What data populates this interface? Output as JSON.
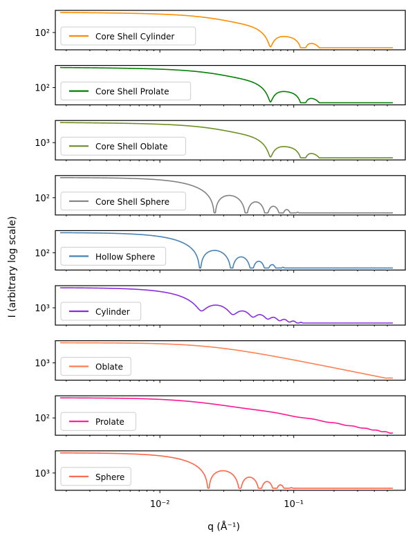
{
  "chart_data": {
    "type": "line",
    "ylabel": "I (arbitrary log scale)",
    "xlabel": "q (Å⁻¹)",
    "x_scale": "log",
    "xlim": [
      0.0018,
      0.55
    ],
    "x_tick_labels": [
      {
        "value": 0.01,
        "label": "10⁻²"
      },
      {
        "value": 0.1,
        "label": "10⁻¹"
      }
    ],
    "legend_placement": "lower left",
    "panels": [
      {
        "name": "Core Shell Cylinder",
        "color": "#ff8c00",
        "y_tick_label": "10²",
        "model": "coreshell",
        "radius": 120
      },
      {
        "name": "Core Shell Prolate",
        "color": "#008000",
        "y_tick_label": "10²",
        "model": "coreshell",
        "radius": 120
      },
      {
        "name": "Core Shell Oblate",
        "color": "#6b8e23",
        "y_tick_label": "10³",
        "model": "coreshell",
        "radius": 120
      },
      {
        "name": "Core Shell Sphere",
        "color": "#808080",
        "y_tick_label": "10²",
        "model": "sphere",
        "radius": 175
      },
      {
        "name": "Hollow Sphere",
        "color": "#4682b4",
        "y_tick_label": "10²",
        "model": "sphere",
        "radius": 225
      },
      {
        "name": "Cylinder",
        "color": "#8a2be2",
        "y_tick_label": "10³",
        "model": "cylinder",
        "radius": 220
      },
      {
        "name": "Oblate",
        "color": "#ff7f50",
        "y_tick_label": "10³",
        "model": "smooth",
        "radius": 60
      },
      {
        "name": "Prolate",
        "color": "#ff1493",
        "y_tick_label": "10²",
        "model": "smooth2",
        "radius": 100
      },
      {
        "name": "Sphere",
        "color": "#ff6347",
        "y_tick_label": "10³",
        "model": "sphere",
        "radius": 195
      }
    ]
  }
}
